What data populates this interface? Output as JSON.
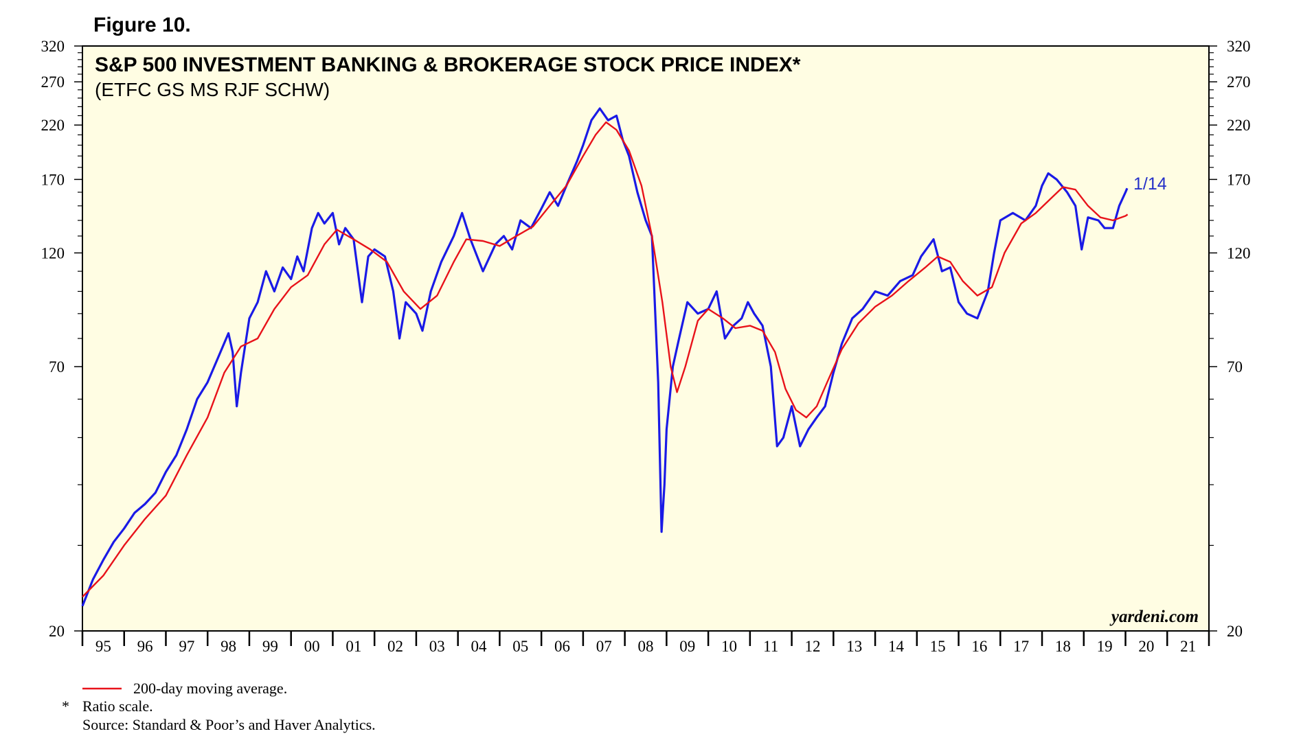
{
  "figure_label": "Figure 10.",
  "watermark": "yardeni.com",
  "colors": {
    "plot_background": "#fffde3",
    "price_line": "#1a1ae6",
    "moving_average": "#e8121a",
    "label_blue": "#2530c8"
  },
  "footnotes": {
    "legend_label": "200-day moving average.",
    "star": "*",
    "ratio_note": "Ratio scale.",
    "source": "Source: Standard & Poor’s and Haver Analytics."
  },
  "chart_data": {
    "type": "line",
    "title": "S&P 500 INVESTMENT BANKING & BROKERAGE STOCK PRICE INDEX*",
    "subtitle": "(ETFC GS MS RJF SCHW)",
    "scale": "log",
    "ylim": [
      20,
      320
    ],
    "yticks_labeled": [
      20,
      70,
      120,
      170,
      220,
      270,
      320
    ],
    "yticks_minor": [
      30,
      40,
      50,
      60,
      80,
      90,
      100,
      110,
      130,
      140,
      150,
      160,
      180,
      190,
      200,
      210,
      230,
      240,
      250,
      260,
      280,
      290,
      300,
      310
    ],
    "xlim": [
      1995,
      2022
    ],
    "x_tick_labels": [
      "95",
      "96",
      "97",
      "98",
      "99",
      "00",
      "01",
      "02",
      "03",
      "04",
      "05",
      "06",
      "07",
      "08",
      "09",
      "10",
      "11",
      "12",
      "13",
      "14",
      "15",
      "16",
      "17",
      "18",
      "19",
      "20",
      "21"
    ],
    "end_label": "1/14",
    "series": [
      {
        "name": "S&P 500 Investment Banking & Brokerage Stock Price Index",
        "values": [
          [
            1995.0,
            22.5
          ],
          [
            1995.25,
            25.5
          ],
          [
            1995.5,
            28.0
          ],
          [
            1995.75,
            30.5
          ],
          [
            1996.0,
            32.5
          ],
          [
            1996.25,
            35.0
          ],
          [
            1996.5,
            36.5
          ],
          [
            1996.75,
            38.5
          ],
          [
            1997.0,
            42.5
          ],
          [
            1997.25,
            46.0
          ],
          [
            1997.5,
            52.0
          ],
          [
            1997.75,
            60.0
          ],
          [
            1998.0,
            65.0
          ],
          [
            1998.25,
            73.0
          ],
          [
            1998.5,
            82.0
          ],
          [
            1998.6,
            75.0
          ],
          [
            1998.7,
            58.0
          ],
          [
            1998.8,
            68.0
          ],
          [
            1999.0,
            88.0
          ],
          [
            1999.2,
            95.0
          ],
          [
            1999.4,
            110.0
          ],
          [
            1999.6,
            100.0
          ],
          [
            1999.8,
            112.0
          ],
          [
            2000.0,
            106.0
          ],
          [
            2000.15,
            118.0
          ],
          [
            2000.3,
            110.0
          ],
          [
            2000.5,
            135.0
          ],
          [
            2000.65,
            145.0
          ],
          [
            2000.8,
            138.0
          ],
          [
            2001.0,
            145.0
          ],
          [
            2001.15,
            125.0
          ],
          [
            2001.3,
            135.0
          ],
          [
            2001.5,
            128.0
          ],
          [
            2001.7,
            95.0
          ],
          [
            2001.85,
            118.0
          ],
          [
            2002.0,
            122.0
          ],
          [
            2002.25,
            118.0
          ],
          [
            2002.45,
            100.0
          ],
          [
            2002.6,
            80.0
          ],
          [
            2002.75,
            95.0
          ],
          [
            2003.0,
            90.0
          ],
          [
            2003.15,
            83.0
          ],
          [
            2003.35,
            100.0
          ],
          [
            2003.6,
            115.0
          ],
          [
            2003.9,
            130.0
          ],
          [
            2004.1,
            145.0
          ],
          [
            2004.3,
            128.0
          ],
          [
            2004.6,
            110.0
          ],
          [
            2004.9,
            125.0
          ],
          [
            2005.1,
            130.0
          ],
          [
            2005.3,
            122.0
          ],
          [
            2005.5,
            140.0
          ],
          [
            2005.75,
            135.0
          ],
          [
            2006.0,
            148.0
          ],
          [
            2006.2,
            160.0
          ],
          [
            2006.4,
            150.0
          ],
          [
            2006.6,
            165.0
          ],
          [
            2006.85,
            185.0
          ],
          [
            2007.0,
            200.0
          ],
          [
            2007.2,
            225.0
          ],
          [
            2007.4,
            238.0
          ],
          [
            2007.6,
            225.0
          ],
          [
            2007.8,
            230.0
          ],
          [
            2007.95,
            205.0
          ],
          [
            2008.1,
            190.0
          ],
          [
            2008.3,
            160.0
          ],
          [
            2008.5,
            140.0
          ],
          [
            2008.65,
            130.0
          ],
          [
            2008.8,
            65.0
          ],
          [
            2008.88,
            32.0
          ],
          [
            2008.95,
            40.0
          ],
          [
            2009.0,
            52.0
          ],
          [
            2009.15,
            70.0
          ],
          [
            2009.3,
            80.0
          ],
          [
            2009.5,
            95.0
          ],
          [
            2009.75,
            90.0
          ],
          [
            2010.0,
            92.0
          ],
          [
            2010.2,
            100.0
          ],
          [
            2010.4,
            80.0
          ],
          [
            2010.6,
            85.0
          ],
          [
            2010.8,
            88.0
          ],
          [
            2010.95,
            95.0
          ],
          [
            2011.1,
            90.0
          ],
          [
            2011.3,
            85.0
          ],
          [
            2011.5,
            70.0
          ],
          [
            2011.65,
            48.0
          ],
          [
            2011.8,
            50.0
          ],
          [
            2012.0,
            58.0
          ],
          [
            2012.2,
            48.0
          ],
          [
            2012.4,
            52.0
          ],
          [
            2012.6,
            55.0
          ],
          [
            2012.8,
            58.0
          ],
          [
            2013.0,
            68.0
          ],
          [
            2013.2,
            78.0
          ],
          [
            2013.45,
            88.0
          ],
          [
            2013.7,
            92.0
          ],
          [
            2014.0,
            100.0
          ],
          [
            2014.3,
            98.0
          ],
          [
            2014.6,
            105.0
          ],
          [
            2014.9,
            108.0
          ],
          [
            2015.1,
            118.0
          ],
          [
            2015.4,
            128.0
          ],
          [
            2015.6,
            110.0
          ],
          [
            2015.8,
            112.0
          ],
          [
            2016.0,
            95.0
          ],
          [
            2016.2,
            90.0
          ],
          [
            2016.45,
            88.0
          ],
          [
            2016.7,
            100.0
          ],
          [
            2016.85,
            120.0
          ],
          [
            2017.0,
            140.0
          ],
          [
            2017.3,
            145.0
          ],
          [
            2017.6,
            140.0
          ],
          [
            2017.85,
            150.0
          ],
          [
            2018.0,
            165.0
          ],
          [
            2018.15,
            175.0
          ],
          [
            2018.35,
            170.0
          ],
          [
            2018.6,
            160.0
          ],
          [
            2018.8,
            150.0
          ],
          [
            2018.95,
            122.0
          ],
          [
            2019.1,
            142.0
          ],
          [
            2019.35,
            140.0
          ],
          [
            2019.5,
            135.0
          ],
          [
            2019.7,
            135.0
          ],
          [
            2019.85,
            150.0
          ],
          [
            2020.0,
            160.0
          ],
          [
            2020.04,
            163.0
          ]
        ]
      },
      {
        "name": "200-day moving average",
        "values": [
          [
            1995.0,
            23.5
          ],
          [
            1995.5,
            26.0
          ],
          [
            1996.0,
            30.0
          ],
          [
            1996.5,
            34.0
          ],
          [
            1997.0,
            38.0
          ],
          [
            1997.5,
            46.0
          ],
          [
            1998.0,
            55.0
          ],
          [
            1998.4,
            68.0
          ],
          [
            1998.8,
            77.0
          ],
          [
            1999.2,
            80.0
          ],
          [
            1999.6,
            92.0
          ],
          [
            2000.0,
            102.0
          ],
          [
            2000.4,
            108.0
          ],
          [
            2000.8,
            125.0
          ],
          [
            2001.1,
            134.0
          ],
          [
            2001.5,
            128.0
          ],
          [
            2001.9,
            122.0
          ],
          [
            2002.3,
            115.0
          ],
          [
            2002.7,
            100.0
          ],
          [
            2003.1,
            92.0
          ],
          [
            2003.5,
            98.0
          ],
          [
            2003.9,
            115.0
          ],
          [
            2004.2,
            128.0
          ],
          [
            2004.6,
            127.0
          ],
          [
            2005.0,
            124.0
          ],
          [
            2005.4,
            130.0
          ],
          [
            2005.8,
            136.0
          ],
          [
            2006.2,
            150.0
          ],
          [
            2006.6,
            165.0
          ],
          [
            2007.0,
            190.0
          ],
          [
            2007.3,
            210.0
          ],
          [
            2007.55,
            223.0
          ],
          [
            2007.8,
            215.0
          ],
          [
            2008.1,
            195.0
          ],
          [
            2008.4,
            165.0
          ],
          [
            2008.65,
            130.0
          ],
          [
            2008.9,
            95.0
          ],
          [
            2009.1,
            70.0
          ],
          [
            2009.25,
            62.0
          ],
          [
            2009.45,
            70.0
          ],
          [
            2009.75,
            87.0
          ],
          [
            2010.0,
            92.0
          ],
          [
            2010.35,
            88.0
          ],
          [
            2010.65,
            84.0
          ],
          [
            2011.0,
            85.0
          ],
          [
            2011.3,
            83.0
          ],
          [
            2011.6,
            75.0
          ],
          [
            2011.85,
            63.0
          ],
          [
            2012.1,
            57.0
          ],
          [
            2012.35,
            55.0
          ],
          [
            2012.6,
            58.0
          ],
          [
            2012.85,
            65.0
          ],
          [
            2013.2,
            76.0
          ],
          [
            2013.6,
            86.0
          ],
          [
            2014.0,
            93.0
          ],
          [
            2014.4,
            98.0
          ],
          [
            2014.8,
            105.0
          ],
          [
            2015.2,
            112.0
          ],
          [
            2015.5,
            118.0
          ],
          [
            2015.8,
            115.0
          ],
          [
            2016.1,
            105.0
          ],
          [
            2016.45,
            98.0
          ],
          [
            2016.8,
            102.0
          ],
          [
            2017.1,
            120.0
          ],
          [
            2017.5,
            138.0
          ],
          [
            2017.85,
            145.0
          ],
          [
            2018.2,
            155.0
          ],
          [
            2018.5,
            164.0
          ],
          [
            2018.8,
            162.0
          ],
          [
            2019.1,
            150.0
          ],
          [
            2019.4,
            142.0
          ],
          [
            2019.7,
            140.0
          ],
          [
            2020.0,
            143.0
          ],
          [
            2020.05,
            144.0
          ]
        ]
      }
    ]
  }
}
